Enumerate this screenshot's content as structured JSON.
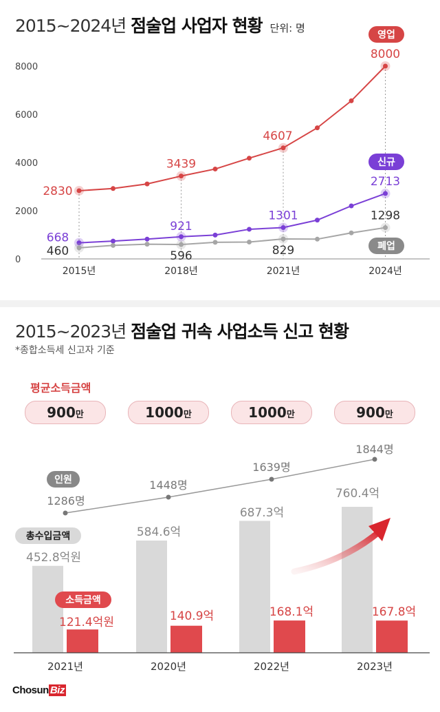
{
  "top": {
    "title_lite": "2015~2024년",
    "title_bold": "점술업 사업자 현황",
    "unit": "단위: 명"
  },
  "bottom": {
    "title_lite": "2015~2023년",
    "title_bold": "점술업 귀속 사업소득 신고 현황",
    "subtitle": "*종합소득세 신고자 기준",
    "avg_income_label": "평균소득금액",
    "avg_income": [
      {
        "value": "900",
        "unit": "만"
      },
      {
        "value": "1000",
        "unit": "만"
      },
      {
        "value": "1000",
        "unit": "만"
      },
      {
        "value": "900",
        "unit": "만"
      }
    ]
  },
  "colors": {
    "business": "#d64545",
    "new": "#7a3fd6",
    "closed": "#a6a6a6",
    "total_bar": "#d9d9d9",
    "income_bar": "#e0494d"
  },
  "chart_data": [
    {
      "type": "line",
      "title": "2015~2024년 점술업 사업자 현황",
      "unit": "단위: 명",
      "x": [
        2015,
        2016,
        2017,
        2018,
        2019,
        2020,
        2021,
        2022,
        2023,
        2024
      ],
      "xtick_labels": [
        "2015년",
        "2018년",
        "2021년",
        "2024년"
      ],
      "ytick_labels": [
        "0",
        "2000",
        "4000",
        "6000",
        "8000"
      ],
      "ylim": [
        0,
        8000
      ],
      "series": [
        {
          "name": "영업",
          "values": [
            2830,
            2920,
            3110,
            3439,
            3730,
            4180,
            4607,
            5440,
            6560,
            8000
          ],
          "labels": {
            "0": "2830",
            "3": "3439",
            "6": "4607",
            "9": "8000"
          }
        },
        {
          "name": "신규",
          "values": [
            668,
            740,
            820,
            921,
            990,
            1230,
            1301,
            1610,
            2200,
            2713
          ],
          "labels": {
            "0": "668",
            "3": "921",
            "6": "1301",
            "9": "2713"
          }
        },
        {
          "name": "폐업",
          "values": [
            460,
            560,
            610,
            596,
            690,
            700,
            829,
            820,
            1080,
            1298
          ],
          "labels": {
            "0": "460",
            "3": "596",
            "6": "829",
            "9": "1298"
          }
        }
      ]
    },
    {
      "type": "bar",
      "title": "2015~2023년 점술업 귀속 사업소득 신고 현황",
      "categories": [
        "2021년",
        "2020년",
        "2022년",
        "2023년"
      ],
      "series": [
        {
          "name": "총수입금액",
          "values": [
            452.8,
            584.6,
            687.3,
            760.4
          ],
          "labels": [
            "452.8억원",
            "584.6억",
            "687.3억",
            "760.4억"
          ]
        },
        {
          "name": "소득금액",
          "values": [
            121.4,
            140.9,
            168.1,
            167.8
          ],
          "labels": [
            "121.4억원",
            "140.9억",
            "168.1억",
            "167.8억"
          ]
        }
      ],
      "line_series": {
        "name": "인원",
        "values": [
          1286,
          1448,
          1639,
          1844
        ],
        "labels": [
          "1286명",
          "1448명",
          "1639명",
          "1844명"
        ]
      }
    }
  ],
  "logo": {
    "main": "Chosun",
    "accent": "Biz"
  }
}
